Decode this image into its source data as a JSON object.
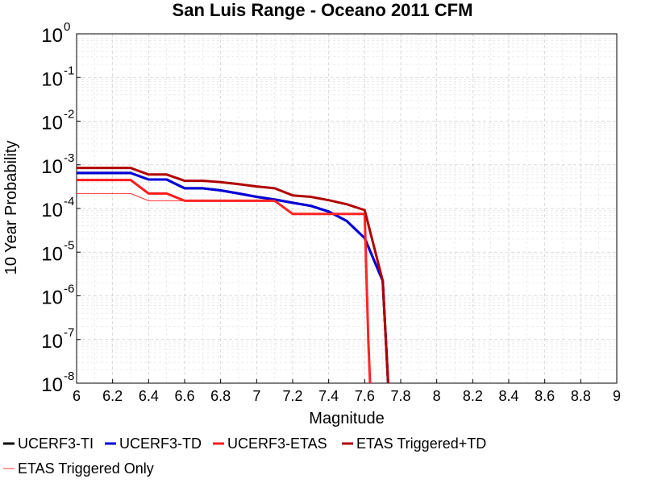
{
  "chart_data": {
    "type": "line",
    "title": "San Luis Range - Oceano 2011 CFM",
    "xlabel": "Magnitude",
    "ylabel": "10 Year Probability",
    "xlim": [
      6,
      9
    ],
    "ylim": [
      1e-08,
      1
    ],
    "yscale": "log",
    "grid": true,
    "legend_position": "bottom",
    "x_ticks": [
      "6",
      "6.2",
      "6.4",
      "6.6",
      "6.8",
      "7",
      "7.2",
      "7.4",
      "7.6",
      "7.8",
      "8",
      "8.2",
      "8.4",
      "8.6",
      "8.8",
      "9"
    ],
    "y_ticks": [
      {
        "base": "10",
        "exp": "0",
        "value": 1
      },
      {
        "base": "10",
        "exp": "-1",
        "value": 0.1
      },
      {
        "base": "10",
        "exp": "-2",
        "value": 0.01
      },
      {
        "base": "10",
        "exp": "-3",
        "value": 0.001
      },
      {
        "base": "10",
        "exp": "-4",
        "value": 0.0001
      },
      {
        "base": "10",
        "exp": "-5",
        "value": 1e-05
      },
      {
        "base": "10",
        "exp": "-6",
        "value": 1e-06
      },
      {
        "base": "10",
        "exp": "-7",
        "value": 1e-07
      },
      {
        "base": "10",
        "exp": "-8",
        "value": 1e-08
      }
    ],
    "series": [
      {
        "name": "UCERF3-TI",
        "color": "#000000",
        "width": 3,
        "x": [
          6.0,
          6.3,
          6.4,
          6.5,
          6.6,
          6.7,
          6.8,
          6.9,
          7.0,
          7.1,
          7.2,
          7.3,
          7.4,
          7.5,
          7.6,
          7.7,
          7.73
        ],
        "y": [
          0.00065,
          0.00065,
          0.00046,
          0.00046,
          0.00029,
          0.00029,
          0.00026,
          0.00022,
          0.000185,
          0.00016,
          0.000135,
          0.000115,
          8.5e-05,
          5.2e-05,
          2.1e-05,
          2.2e-06,
          8e-09
        ]
      },
      {
        "name": "UCERF3-TD",
        "color": "#0000dd",
        "width": 3,
        "x": [
          6.0,
          6.3,
          6.4,
          6.5,
          6.6,
          6.7,
          6.8,
          6.9,
          7.0,
          7.1,
          7.2,
          7.3,
          7.4,
          7.5,
          7.6,
          7.7,
          7.73
        ],
        "y": [
          0.00065,
          0.00065,
          0.00046,
          0.00046,
          0.00029,
          0.00029,
          0.00026,
          0.00022,
          0.000185,
          0.00016,
          0.000135,
          0.000115,
          8.5e-05,
          5.2e-05,
          2.1e-05,
          2.2e-06,
          8e-09
        ]
      },
      {
        "name": "UCERF3-ETAS",
        "color": "#ff1a1a",
        "width": 3,
        "x": [
          6.0,
          6.3,
          6.4,
          6.5,
          6.6,
          6.7,
          6.8,
          6.9,
          7.0,
          7.1,
          7.2,
          7.3,
          7.4,
          7.5,
          7.6,
          7.62,
          7.63
        ],
        "y": [
          0.00045,
          0.00045,
          0.00022,
          0.00022,
          0.00015,
          0.00015,
          0.00015,
          0.00015,
          0.00015,
          0.00015,
          7.5e-05,
          7.5e-05,
          7.5e-05,
          7.5e-05,
          7.5e-05,
          1e-07,
          8e-09
        ]
      },
      {
        "name": "ETAS Triggered+TD",
        "color": "#b00000",
        "width": 3,
        "x": [
          6.0,
          6.3,
          6.4,
          6.5,
          6.6,
          6.7,
          6.8,
          6.9,
          7.0,
          7.1,
          7.2,
          7.3,
          7.4,
          7.5,
          7.6,
          7.7,
          7.73
        ],
        "y": [
          0.00085,
          0.00085,
          0.0006,
          0.0006,
          0.00043,
          0.00043,
          0.0004,
          0.00036,
          0.00032,
          0.00029,
          0.0002,
          0.000185,
          0.000155,
          0.000125,
          9.2e-05,
          2.2e-06,
          8e-09
        ]
      },
      {
        "name": "ETAS Triggered Only",
        "color": "#ff3333",
        "width": 1,
        "x": [
          6.0,
          6.3,
          6.4,
          6.5,
          6.6,
          6.7,
          6.8,
          6.9,
          7.0,
          7.1,
          7.2,
          7.3,
          7.4,
          7.5,
          7.6,
          7.62,
          7.63
        ],
        "y": [
          0.00022,
          0.00022,
          0.00015,
          0.00015,
          0.00015,
          0.00015,
          0.00015,
          0.00015,
          0.00015,
          0.00015,
          7.5e-05,
          7.5e-05,
          7.5e-05,
          7.5e-05,
          7.5e-05,
          1e-07,
          8e-09
        ]
      }
    ]
  }
}
